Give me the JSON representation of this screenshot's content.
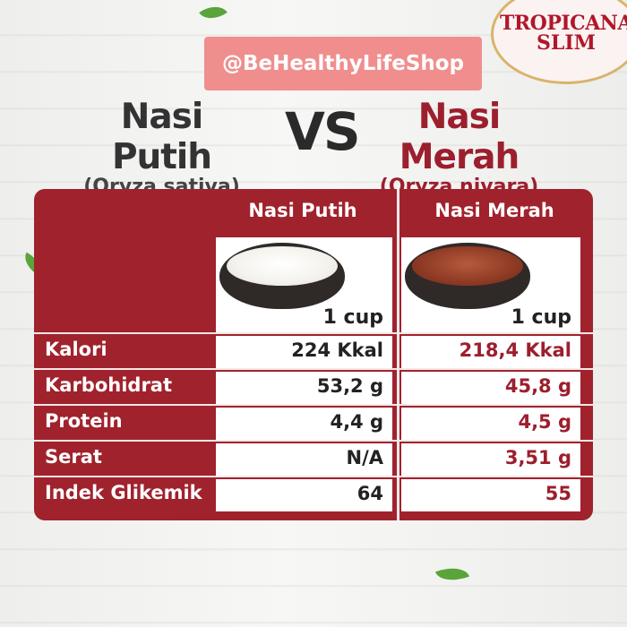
{
  "brand": {
    "logo_top": "TROPICANA",
    "logo_bottom": "SLIM",
    "handle": "@BeHealthyLifeShop"
  },
  "colors": {
    "table_bg": "#a0222d",
    "accent_red": "#9c1f2e",
    "handle_bg": "#f08e8e"
  },
  "titles": {
    "left_main": "Nasi Putih",
    "left_sub": "(Oryza sativa)",
    "vs": "VS",
    "right_main": "Nasi Merah",
    "right_sub": "(Oryza nivara)"
  },
  "table": {
    "columns": [
      "Nasi Putih",
      "Nasi Merah"
    ],
    "serving": [
      "1 cup",
      "1 cup"
    ],
    "rows": [
      {
        "label": "Kalori",
        "putih": "224 Kkal",
        "merah": "218,4 Kkal"
      },
      {
        "label": "Karbohidrat",
        "putih": "53,2 g",
        "merah": "45,8 g"
      },
      {
        "label": "Protein",
        "putih": "4,4 g",
        "merah": "4,5 g"
      },
      {
        "label": "Serat",
        "putih": "N/A",
        "merah": "3,51 g"
      },
      {
        "label": "Indek Glikemik",
        "putih": "64",
        "merah": "55"
      }
    ]
  }
}
